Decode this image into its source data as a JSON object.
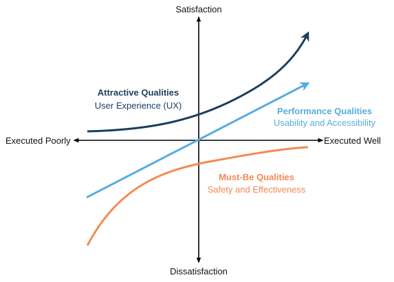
{
  "axes": {
    "top": "Satisfaction",
    "bottom": "Dissatisfaction",
    "left": "Executed Poorly",
    "right": "Executed Well"
  },
  "categories": {
    "attractive": {
      "title": "Attractive Qualities",
      "subtitle": "User Experience (UX)",
      "color": "#1b3d5e"
    },
    "performance": {
      "title": "Performance Qualities",
      "subtitle": "Usability and Accessibility",
      "color": "#55ade0"
    },
    "mustbe": {
      "title": "Must-Be Qualities",
      "subtitle": "Safety and Effectiveness",
      "color": "#f38a52"
    }
  },
  "colors": {
    "axis": "#000000"
  }
}
